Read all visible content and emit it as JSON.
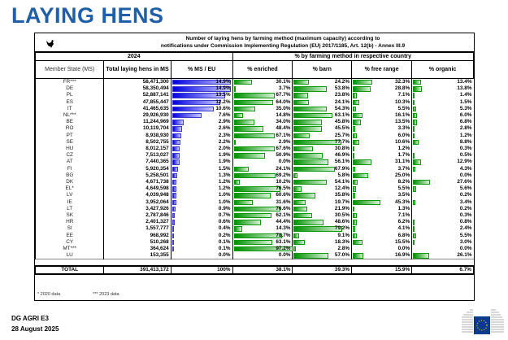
{
  "title": "LAYING HENS",
  "caption": {
    "line1": "Number of laying hens by farming method (maximum capacity) according to",
    "line2": "notifications under Commission Implementing Regulation (EU) 2017/1185, Art. 12(b) - Annex III.9"
  },
  "header": {
    "year": "2024",
    "by_method": "% by farming method in respective country",
    "member_state": "Member State (MS)",
    "total": "Total laying hens in MS",
    "ms_eu": "% MS / EU",
    "enriched": "% enriched",
    "barn": "% barn",
    "free_range": "% free range",
    "organic": "% organic"
  },
  "rows": [
    [
      "FR***",
      "58,471,300",
      14.9,
      30.1,
      24.2,
      32.3,
      13.4
    ],
    [
      "DE",
      "58,350,494",
      14.9,
      3.7,
      53.8,
      28.8,
      13.8
    ],
    [
      "PL",
      "52,887,141",
      13.5,
      67.7,
      23.8,
      7.1,
      1.4
    ],
    [
      "ES",
      "47,855,447",
      12.2,
      64.0,
      24.1,
      10.3,
      1.5
    ],
    [
      "IT",
      "41,465,635",
      10.6,
      35.0,
      54.3,
      5.5,
      5.3
    ],
    [
      "NL***",
      "29,926,930",
      7.6,
      14.8,
      63.1,
      16.1,
      6.0
    ],
    [
      "BE",
      "11,244,969",
      2.9,
      34.0,
      45.8,
      13.5,
      6.8
    ],
    [
      "RO",
      "10,119,704",
      2.6,
      48.4,
      45.5,
      3.3,
      2.8
    ],
    [
      "PT",
      "8,938,930",
      2.3,
      67.1,
      25.7,
      6.0,
      1.2
    ],
    [
      "SE",
      "8,502,755",
      2.2,
      2.9,
      77.7,
      10.6,
      8.8
    ],
    [
      "HU",
      "8,012,157",
      2.0,
      67.6,
      30.8,
      1.2,
      0.3
    ],
    [
      "CZ",
      "7,513,027",
      1.9,
      50.9,
      46.9,
      1.7,
      0.5
    ],
    [
      "AT",
      "7,440,365",
      1.9,
      0.0,
      56.1,
      31.1,
      12.9
    ],
    [
      "FI",
      "5,920,354",
      1.5,
      24.1,
      67.9,
      3.7,
      4.3
    ],
    [
      "BG",
      "5,258,501",
      1.3,
      69.2,
      5.8,
      25.0,
      0.0
    ],
    [
      "DK",
      "4,671,738",
      1.2,
      10.2,
      54.1,
      8.2,
      27.6
    ],
    [
      "EL*",
      "4,649,598",
      1.2,
      76.5,
      12.4,
      5.5,
      5.6
    ],
    [
      "LV",
      "4,039,948",
      1.0,
      60.6,
      35.8,
      3.5,
      0.2
    ],
    [
      "IE",
      "3,952,064",
      1.0,
      31.6,
      19.7,
      45.3,
      3.4
    ],
    [
      "LT",
      "3,427,926",
      0.9,
      76.6,
      21.9,
      1.3,
      0.2
    ],
    [
      "SK",
      "2,787,846",
      0.7,
      62.1,
      30.5,
      7.1,
      0.3
    ],
    [
      "HR",
      "2,401,327",
      0.6,
      44.4,
      48.6,
      6.2,
      0.8
    ],
    [
      "SI",
      "1,557,777",
      0.4,
      14.3,
      79.2,
      4.1,
      2.4
    ],
    [
      "EE",
      "968,992",
      0.2,
      78.7,
      9.1,
      6.8,
      5.5
    ],
    [
      "CY",
      "510,268",
      0.1,
      63.1,
      18.3,
      15.5,
      3.0
    ],
    [
      "MT***",
      "364,624",
      0.1,
      97.2,
      2.8,
      0.0,
      0.0
    ],
    [
      "LU",
      "153,355",
      0.0,
      0.0,
      57.0,
      16.9,
      26.1
    ]
  ],
  "total": {
    "label": "TOTAL",
    "hens": "391,413,172",
    "ms_eu": "100%",
    "enriched": "38.1%",
    "barn": "39.3%",
    "free_range": "15.9%",
    "organic": "6.7%"
  },
  "notes": {
    "n1": "* 2020 data",
    "n2": "*** 2023 data"
  },
  "footer": {
    "org": "DG AGRI E3",
    "date": "28 August 2025"
  },
  "colors": {
    "title": "#1f5ea8",
    "ms_bar": "#0000e0",
    "method_bar": "#009000"
  }
}
